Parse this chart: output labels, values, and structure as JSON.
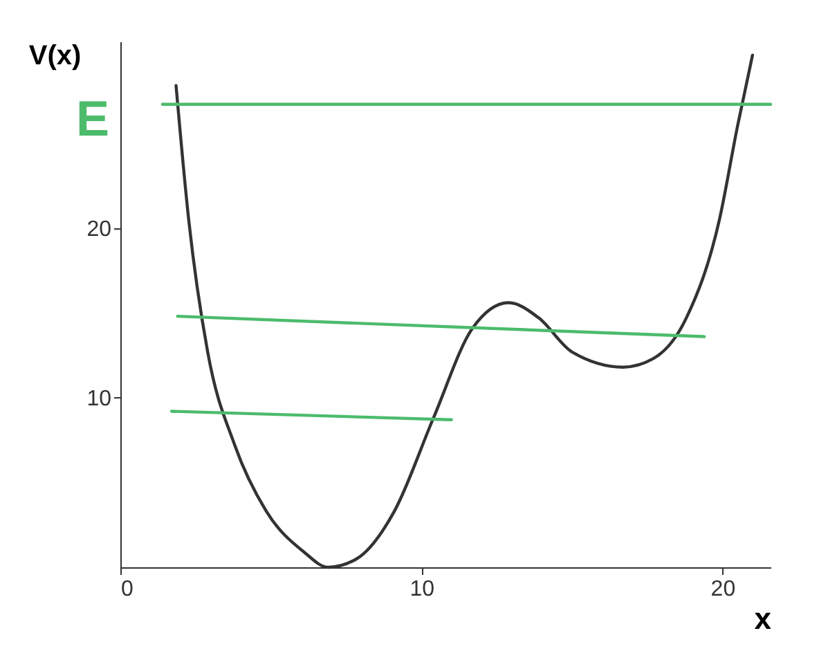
{
  "chart_data": {
    "type": "line",
    "xlabel": "x",
    "ylabel": "V(x)",
    "annotations": [
      "E"
    ],
    "xlim": [
      0,
      21.6
    ],
    "ylim": [
      0,
      31
    ],
    "xticks": [
      0,
      10,
      20
    ],
    "yticks": [
      10,
      20
    ],
    "grid": false,
    "marker": "none",
    "line_style": "solid",
    "series": [
      {
        "color": "#333333",
        "x": [
          1.85,
          2.27,
          2.9,
          3.8,
          4.85,
          6.1,
          6.9,
          7.85,
          9.1,
          10.4,
          11.7,
          12.9,
          13.9,
          15.0,
          16.7,
          17.7,
          18.8,
          19.9,
          20.5,
          21.0
        ],
        "values": [
          28.4,
          20.5,
          12.7,
          7.2,
          3.3,
          0.9,
          0,
          0.5,
          3.3,
          8.8,
          14.1,
          15.6,
          14.7,
          12.7,
          11.8,
          12.3,
          14.7,
          20.5,
          26.0,
          30.2
        ]
      },
      {
        "color": "#4cbb6c",
        "x": [
          1.4,
          21.6
        ],
        "values": [
          27.3,
          27.3
        ]
      },
      {
        "color": "#4cbb6c",
        "x": [
          1.9,
          19.4
        ],
        "values": [
          14.8,
          13.6
        ]
      },
      {
        "color": "#4cbb6c",
        "x": [
          1.7,
          11.0
        ],
        "values": [
          9.2,
          8.7
        ]
      }
    ]
  }
}
